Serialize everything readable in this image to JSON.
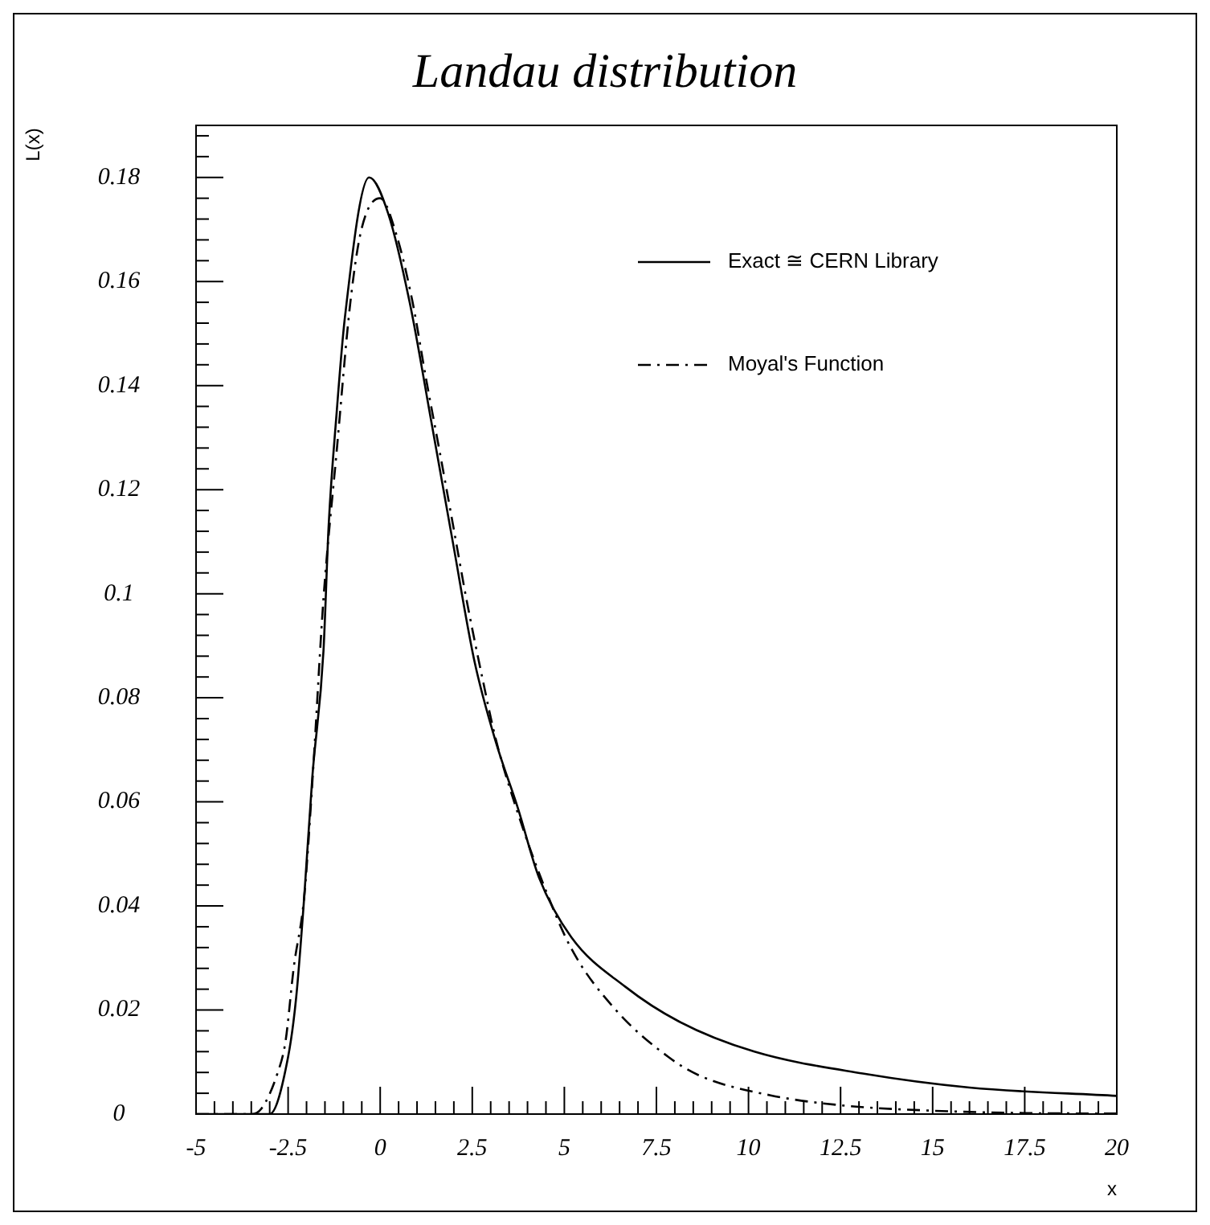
{
  "chart_data": {
    "type": "line",
    "title": "Landau distribution",
    "xlabel": "x",
    "ylabel": "L(x)",
    "xlim": [
      -5,
      20
    ],
    "xticks": [
      -5,
      -2.5,
      0,
      2.5,
      5,
      7.5,
      10,
      12.5,
      15,
      17.5,
      20
    ],
    "ylim": [
      0,
      0.19
    ],
    "yticks": [
      0,
      0.02,
      0.04,
      0.06,
      0.08,
      0.1,
      0.12,
      0.14,
      0.16,
      0.18
    ],
    "grid": false,
    "legend": "top right",
    "marker": "none",
    "series": [
      {
        "name": "Exact ≅ CERN Library",
        "color": "#000000",
        "line_style": "solid",
        "x": [
          -5,
          -3,
          -2.5,
          -2.28,
          -2.06,
          -1.84,
          -1.54,
          -1.4,
          -1.18,
          -0.96,
          -0.3,
          0.22,
          0.8,
          1.39,
          1.97,
          2.56,
          3.14,
          3.73,
          4.31,
          5.19,
          6.65,
          8.11,
          10.16,
          13.1,
          16,
          20
        ],
        "values": [
          0,
          0,
          0.011,
          0.0225,
          0.042,
          0.065,
          0.089,
          0.113,
          0.135,
          0.153,
          0.18,
          0.173,
          0.156,
          0.133,
          0.11,
          0.087,
          0.0715,
          0.059,
          0.0455,
          0.034,
          0.0245,
          0.0178,
          0.012,
          0.0078,
          0.0051,
          0.0035
        ]
      },
      {
        "name": "Moyal's Function",
        "color": "#000000",
        "line_style": "dashed",
        "x": [
          -5,
          -3.5,
          -3.23,
          -2.79,
          -2.57,
          -2.35,
          -2.06,
          -1.84,
          -1.54,
          -1.18,
          -0.81,
          -0.51,
          0,
          0.44,
          0.88,
          1.24,
          1.61,
          1.97,
          2.34,
          2.78,
          3.14,
          3.73,
          4.39,
          5.19,
          6.36,
          7.82,
          8.7,
          10.6,
          12.5,
          14.8,
          17.5,
          20
        ],
        "values": [
          0,
          0,
          0.001,
          0.0078,
          0.014,
          0.028,
          0.042,
          0.064,
          0.099,
          0.1275,
          0.156,
          0.17,
          0.176,
          0.169,
          0.156,
          0.1415,
          0.1275,
          0.1135,
          0.099,
          0.0836,
          0.072,
          0.058,
          0.0449,
          0.0318,
          0.0203,
          0.011,
          0.0073,
          0.0036,
          0.0017,
          0.0007,
          0.0002,
          0.0001
        ]
      }
    ]
  }
}
